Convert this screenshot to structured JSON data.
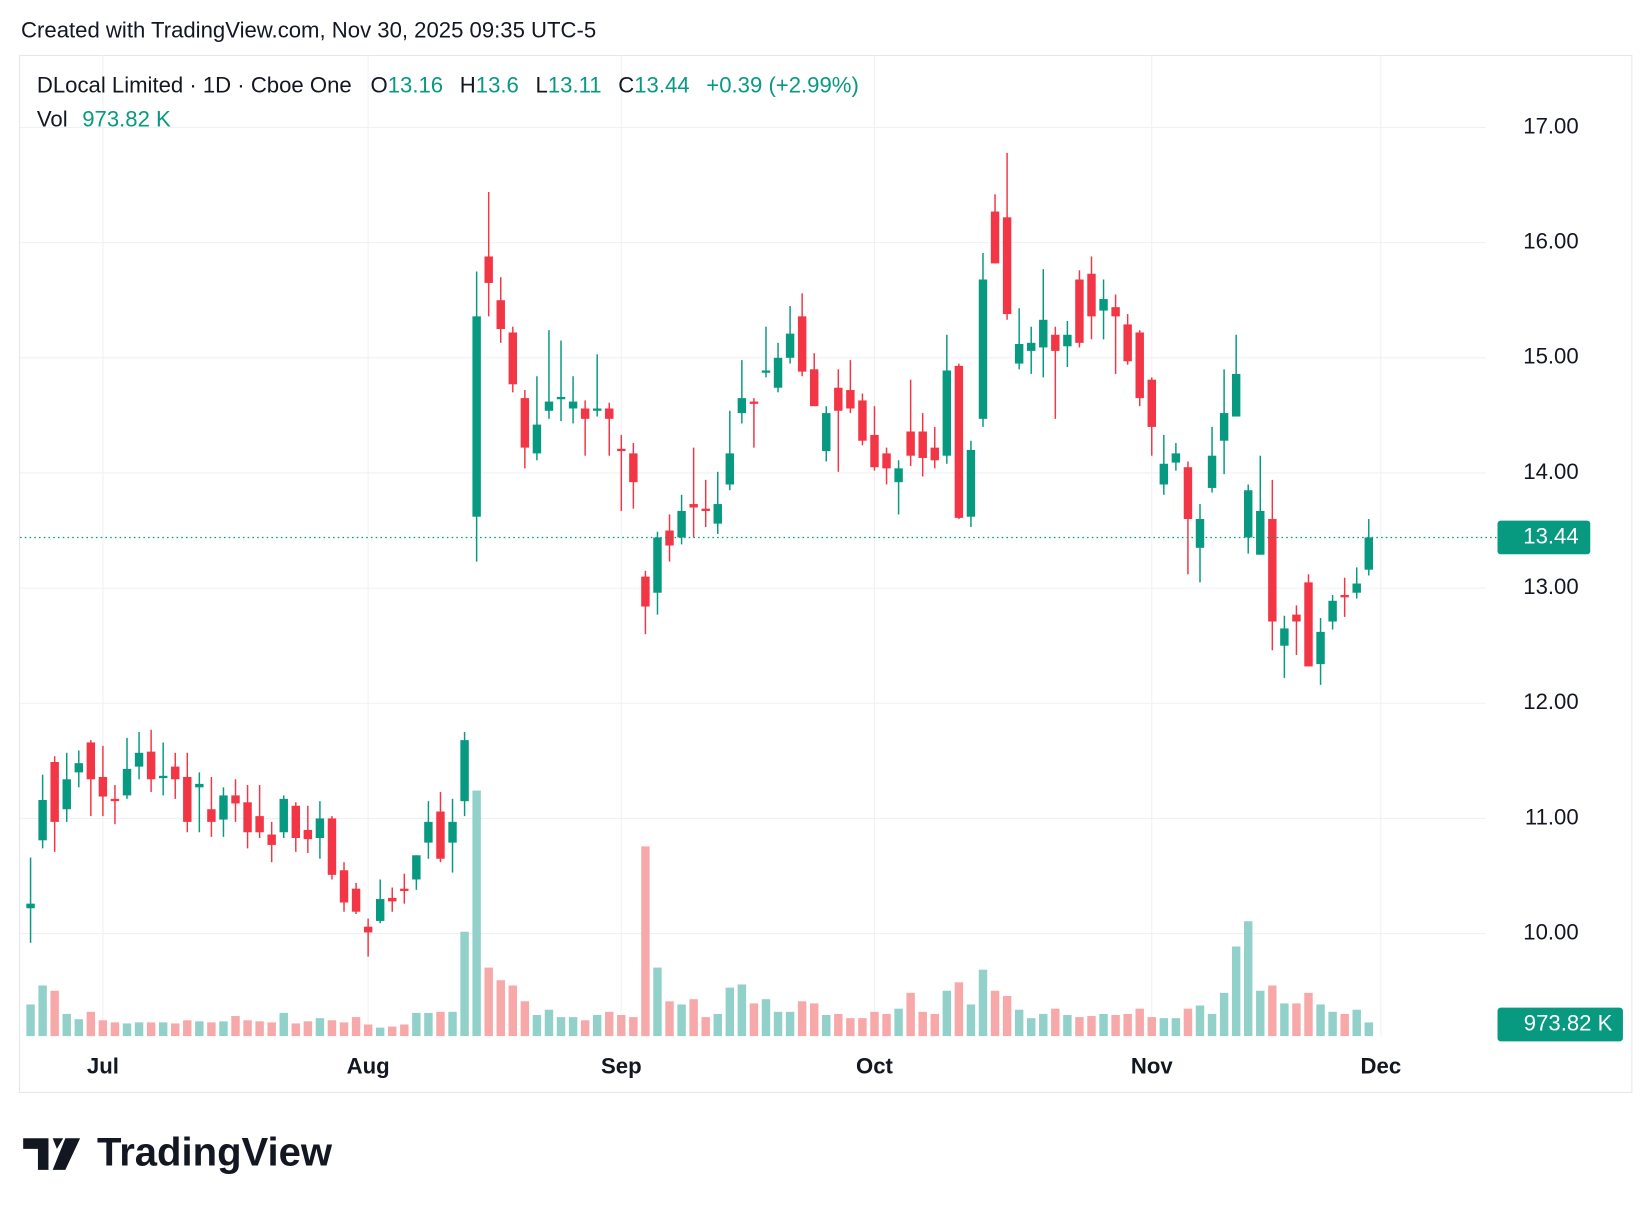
{
  "caption": "Created with TradingView.com, Nov 30, 2025 09:35 UTC-5",
  "logo": "TradingView",
  "chart_data": {
    "type": "candlestick",
    "title": "DLocal Limited · 1D · Cboe One",
    "ohlc_labels": [
      "O",
      "H",
      "L",
      "C"
    ],
    "change": "+0.39 (+2.99%)",
    "volume_name": "Vol",
    "volume_label": "973.82 K",
    "up_color": "#089981",
    "down_color": "#f23645",
    "volume_up_color": "#92d1ca",
    "volume_down_color": "#f7a8a8",
    "grid": true,
    "categories": [
      null,
      null,
      null,
      null,
      null,
      null,
      "Jul",
      null,
      null,
      null,
      null,
      null,
      null,
      null,
      null,
      null,
      null,
      null,
      null,
      null,
      null,
      null,
      null,
      null,
      null,
      null,
      null,
      null,
      "Aug",
      null,
      null,
      null,
      null,
      null,
      null,
      null,
      null,
      null,
      null,
      null,
      null,
      null,
      null,
      null,
      null,
      null,
      null,
      null,
      null,
      "Sep",
      null,
      null,
      null,
      null,
      null,
      null,
      null,
      null,
      null,
      null,
      null,
      null,
      null,
      null,
      null,
      null,
      null,
      null,
      null,
      null,
      "Oct",
      null,
      null,
      null,
      null,
      null,
      null,
      null,
      null,
      null,
      null,
      null,
      null,
      null,
      null,
      null,
      null,
      null,
      null,
      null,
      null,
      null,
      null,
      "Nov",
      null,
      null,
      null,
      null,
      null,
      null,
      null,
      null,
      null,
      null,
      null,
      null,
      null,
      null,
      null,
      null,
      null,
      null,
      "Dec"
    ],
    "open": [
      10.22,
      10.81,
      11.49,
      11.08,
      11.4,
      11.66,
      11.36,
      11.17,
      11.2,
      11.45,
      11.58,
      11.35,
      11.45,
      11.36,
      11.27,
      11.08,
      10.99,
      11.2,
      11.14,
      11.02,
      10.86,
      10.88,
      11.11,
      10.9,
      10.83,
      11.0,
      10.55,
      10.39,
      10.06,
      10.11,
      10.31,
      10.39,
      10.47,
      10.79,
      11.06,
      10.79,
      11.15,
      13.62,
      15.88,
      15.5,
      15.22,
      14.65,
      14.17,
      14.54,
      14.64,
      14.56,
      14.56,
      14.54,
      14.56,
      14.21,
      14.17,
      13.1,
      12.96,
      13.5,
      13.44,
      13.73,
      13.69,
      13.56,
      13.9,
      14.52,
      14.62,
      14.87,
      14.74,
      15.0,
      15.36,
      14.9,
      14.19,
      14.74,
      14.72,
      14.63,
      14.33,
      14.17,
      13.92,
      14.36,
      14.36,
      14.22,
      14.15,
      14.93,
      13.62,
      14.47,
      16.27,
      16.22,
      14.95,
      15.06,
      15.09,
      15.2,
      15.1,
      15.68,
      15.73,
      15.41,
      15.44,
      15.29,
      15.22,
      14.81,
      13.9,
      14.09,
      14.05,
      13.35,
      13.87,
      14.28,
      14.49,
      13.44,
      13.29,
      13.6,
      12.5,
      12.77,
      13.05,
      12.34,
      12.71,
      12.94,
      12.96,
      13.16,
      null
    ],
    "high": [
      10.66,
      11.38,
      11.54,
      11.57,
      11.59,
      11.68,
      11.63,
      11.29,
      11.7,
      11.75,
      11.77,
      11.66,
      11.57,
      11.57,
      11.4,
      11.36,
      11.27,
      11.34,
      11.29,
      11.29,
      10.97,
      11.2,
      11.14,
      11.11,
      11.15,
      11.02,
      10.62,
      10.44,
      10.13,
      10.47,
      10.4,
      10.52,
      10.68,
      11.15,
      11.23,
      11.17,
      11.75,
      15.75,
      16.44,
      15.7,
      15.27,
      14.72,
      14.84,
      15.24,
      15.15,
      14.84,
      14.63,
      15.03,
      14.61,
      14.33,
      14.26,
      13.15,
      13.49,
      13.64,
      13.81,
      14.22,
      13.94,
      14.01,
      14.54,
      14.98,
      14.65,
      15.27,
      15.13,
      15.45,
      15.56,
      15.04,
      14.58,
      14.9,
      14.98,
      14.69,
      14.58,
      14.22,
      14.11,
      14.81,
      14.52,
      14.4,
      15.2,
      14.95,
      14.28,
      15.91,
      16.42,
      16.78,
      15.43,
      15.27,
      15.77,
      15.27,
      15.32,
      15.76,
      15.88,
      15.68,
      15.55,
      15.38,
      15.24,
      14.83,
      14.33,
      14.26,
      14.1,
      13.73,
      14.4,
      14.9,
      15.2,
      13.9,
      14.15,
      13.94,
      12.76,
      12.85,
      13.12,
      12.74,
      12.94,
      13.09,
      13.18,
      13.6,
      null
    ],
    "low": [
      9.92,
      10.74,
      10.71,
      10.97,
      11.27,
      11.02,
      11.02,
      10.95,
      11.17,
      11.34,
      11.23,
      11.2,
      11.17,
      10.88,
      10.88,
      10.84,
      10.84,
      10.97,
      10.74,
      10.83,
      10.62,
      10.83,
      10.71,
      10.7,
      10.65,
      10.47,
      10.19,
      10.17,
      9.8,
      10.09,
      10.19,
      10.26,
      10.38,
      10.65,
      10.62,
      10.53,
      11.02,
      13.23,
      15.36,
      15.13,
      14.7,
      14.04,
      14.11,
      14.47,
      14.45,
      14.43,
      14.15,
      14.49,
      14.15,
      13.67,
      13.69,
      12.6,
      12.77,
      13.23,
      13.38,
      13.44,
      13.53,
      13.47,
      13.85,
      14.43,
      14.22,
      14.83,
      14.7,
      14.95,
      14.84,
      14.58,
      14.1,
      14.01,
      14.52,
      14.24,
      14.02,
      13.9,
      13.64,
      14.06,
      13.97,
      14.04,
      14.08,
      13.6,
      13.53,
      14.4,
      15.82,
      15.33,
      14.9,
      14.86,
      14.83,
      14.47,
      14.92,
      15.09,
      15.16,
      15.16,
      14.86,
      14.94,
      14.58,
      14.15,
      13.81,
      14.02,
      13.12,
      13.05,
      13.83,
      13.99,
      14.49,
      13.3,
      13.29,
      12.46,
      12.22,
      12.42,
      12.32,
      12.16,
      12.64,
      12.75,
      12.91,
      13.11,
      null
    ],
    "close": [
      10.26,
      11.16,
      10.97,
      11.34,
      11.48,
      11.34,
      11.19,
      11.15,
      11.43,
      11.57,
      11.34,
      11.37,
      11.34,
      10.97,
      11.3,
      10.97,
      11.2,
      11.13,
      10.88,
      10.88,
      10.77,
      11.17,
      10.83,
      10.82,
      11.0,
      10.51,
      10.27,
      10.19,
      10.01,
      10.3,
      10.28,
      10.37,
      10.68,
      10.97,
      10.65,
      10.97,
      11.68,
      15.36,
      15.65,
      15.25,
      14.77,
      14.22,
      14.42,
      14.62,
      14.66,
      14.62,
      14.47,
      14.56,
      14.47,
      14.19,
      13.92,
      12.84,
      13.44,
      13.37,
      13.67,
      13.7,
      13.67,
      13.73,
      14.17,
      14.65,
      14.6,
      14.89,
      15.0,
      15.21,
      14.88,
      14.58,
      14.52,
      14.54,
      14.56,
      14.28,
      14.05,
      14.04,
      14.04,
      14.15,
      14.13,
      14.11,
      14.89,
      13.61,
      14.2,
      15.68,
      15.82,
      15.38,
      15.12,
      15.13,
      15.33,
      15.06,
      15.2,
      15.13,
      15.36,
      15.51,
      15.36,
      14.97,
      14.65,
      14.4,
      14.08,
      14.17,
      13.6,
      13.6,
      14.15,
      14.52,
      14.86,
      13.85,
      13.67,
      12.71,
      12.65,
      12.71,
      12.32,
      12.62,
      12.89,
      12.92,
      13.04,
      13.44,
      null
    ],
    "volume": [
      2250,
      3600,
      3225,
      1575,
      1200,
      1725,
      1125,
      975,
      900,
      975,
      975,
      975,
      900,
      1125,
      1050,
      975,
      1050,
      1425,
      1125,
      1050,
      975,
      1650,
      900,
      1050,
      1275,
      1125,
      975,
      1350,
      825,
      600,
      675,
      825,
      1650,
      1650,
      1725,
      1725,
      7425,
      17475,
      4875,
      3975,
      3600,
      2475,
      1500,
      1875,
      1350,
      1350,
      1125,
      1500,
      1725,
      1500,
      1350,
      13500,
      4875,
      2475,
      2250,
      2625,
      1350,
      1575,
      3450,
      3675,
      2325,
      2625,
      1725,
      1725,
      2475,
      2325,
      1500,
      1575,
      1275,
      1275,
      1725,
      1575,
      1950,
      3075,
      1725,
      1575,
      3225,
      3825,
      2250,
      4725,
      3225,
      2850,
      1875,
      1275,
      1575,
      1950,
      1500,
      1350,
      1425,
      1575,
      1500,
      1575,
      1950,
      1350,
      1275,
      1275,
      1950,
      2175,
      1575,
      3075,
      6375,
      8175,
      3225,
      3600,
      2325,
      2325,
      3075,
      2250,
      1725,
      1575,
      1875,
      973.82,
      null
    ],
    "ylim": [
      9.11,
      17.63
    ],
    "yticks": [
      {
        "value": 10,
        "label": "10.00"
      },
      {
        "value": 11,
        "label": "11.00"
      },
      {
        "value": 12,
        "label": "12.00"
      },
      {
        "value": 13,
        "label": "13.00"
      },
      {
        "value": 14,
        "label": "14.00"
      },
      {
        "value": 15,
        "label": "15.00"
      },
      {
        "value": 16,
        "label": "16.00"
      },
      {
        "value": 17,
        "label": "17.00"
      }
    ],
    "y2lim": [
      0,
      69825
    ]
  }
}
